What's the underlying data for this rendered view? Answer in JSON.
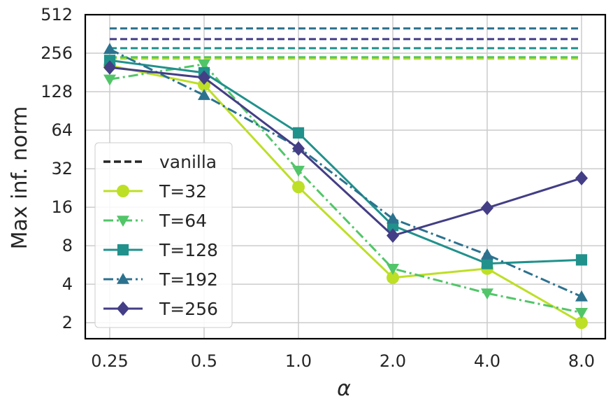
{
  "chart_data": {
    "type": "line",
    "title": "",
    "xlabel": "α",
    "ylabel": "Max inf. norm",
    "x_scale": "log2",
    "y_scale": "log2",
    "x": [
      0.25,
      0.5,
      1.0,
      2.0,
      4.0,
      8.0
    ],
    "x_tick_labels": [
      "0.25",
      "0.5",
      "1.0",
      "2.0",
      "4.0",
      "8.0"
    ],
    "y_ticks": [
      2,
      4,
      8,
      16,
      32,
      64,
      128,
      256,
      512
    ],
    "y_tick_labels": [
      "2",
      "4",
      "8",
      "16",
      "32",
      "64",
      "128",
      "256",
      "512"
    ],
    "ylim": [
      1.5,
      512
    ],
    "grid": true,
    "legend_position": "lower-left",
    "vanilla_legend_label": "vanilla",
    "series": [
      {
        "name": "T=32",
        "color": "#bddf26",
        "marker": "circle",
        "dash": "solid",
        "values": [
          205,
          145,
          23,
          4.5,
          5.3,
          2
        ],
        "vanilla": 232
      },
      {
        "name": "T=64",
        "color": "#52c569",
        "marker": "triangle-down",
        "dash": "dashdot",
        "values": [
          160,
          210,
          31,
          5.3,
          3.4,
          2.4
        ],
        "vanilla": 238
      },
      {
        "name": "T=128",
        "color": "#21918c",
        "marker": "square",
        "dash": "solid",
        "values": [
          225,
          180,
          61,
          11.5,
          5.8,
          6.2
        ],
        "vanilla": 280
      },
      {
        "name": "T=192",
        "color": "#2c728e",
        "marker": "triangle-up",
        "dash": "dashdot",
        "values": [
          275,
          120,
          47,
          13,
          6.8,
          3.2
        ],
        "vanilla": 400
      },
      {
        "name": "T=256",
        "color": "#433e85",
        "marker": "diamond",
        "dash": "solid",
        "values": [
          198,
          165,
          46,
          9.6,
          15.8,
          27
        ],
        "vanilla": 330
      }
    ]
  }
}
